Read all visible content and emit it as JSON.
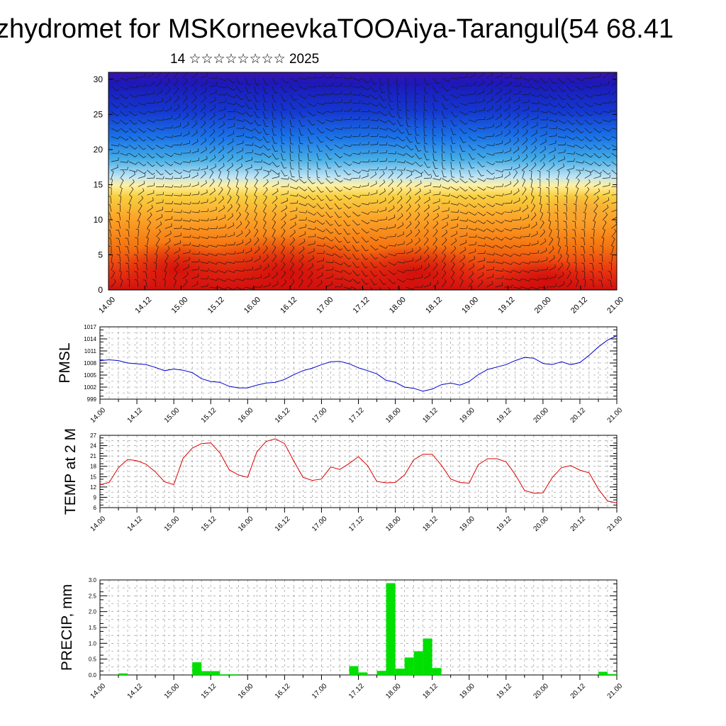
{
  "header": {
    "title": "zhydromet for MSKorneevkaTOOAiya-Tarangul(54 68.41",
    "subtitle": "14 ☆☆☆☆☆☆☆☆ 2025"
  },
  "colors": {
    "pmsl": "#0000cc",
    "temp": "#dd0000",
    "precip": "#00e000"
  },
  "time_ticks": [
    "14.00",
    "14.12",
    "15.00",
    "15.12",
    "16.00",
    "16.12",
    "17.00",
    "17.12",
    "18.00",
    "18.12",
    "19.00",
    "19.12",
    "20.00",
    "20.12",
    "21.00"
  ],
  "chart_data": [
    {
      "type": "heatmap",
      "name": "cross-section",
      "title": "",
      "xlabel": "",
      "ylabel": "",
      "ylim": [
        0,
        31
      ],
      "yticks": [
        "0",
        "5",
        "10",
        "15",
        "20",
        "25",
        "30"
      ],
      "x_tick_labels": [
        "14.00",
        "14.12",
        "15.00",
        "15.12",
        "16.00",
        "16.12",
        "17.00",
        "17.12",
        "18.00",
        "18.12",
        "19.00",
        "19.12",
        "20.00",
        "20.12",
        "21.00"
      ],
      "colorscale": [
        "#d01010",
        "#f05010",
        "#fb9a1e",
        "#f8d044",
        "#fff6b0",
        "#bfe4f4",
        "#46aee6",
        "#1458e0",
        "#1818b8",
        "#3a14b0"
      ],
      "wind_barbs": true
    },
    {
      "type": "line",
      "ylabel": "PMSL",
      "ylim": [
        999,
        1017
      ],
      "yticks": [
        "999",
        "1002",
        "1005",
        "1008",
        "1011",
        "1014",
        "1017"
      ],
      "x": [
        "14.00",
        "14.03",
        "14.06",
        "14.09",
        "14.12",
        "14.15",
        "14.18",
        "14.21",
        "15.00",
        "15.03",
        "15.06",
        "15.09",
        "15.12",
        "15.15",
        "15.18",
        "15.21",
        "16.00",
        "16.03",
        "16.06",
        "16.09",
        "16.12",
        "16.15",
        "16.18",
        "16.21",
        "17.00",
        "17.03",
        "17.06",
        "17.09",
        "17.12",
        "17.15",
        "17.18",
        "17.21",
        "18.00",
        "18.03",
        "18.06",
        "18.09",
        "18.12",
        "18.15",
        "18.18",
        "18.21",
        "19.00",
        "19.03",
        "19.06",
        "19.09",
        "19.12",
        "19.15",
        "19.18",
        "19.21",
        "20.00",
        "20.03",
        "20.06",
        "20.09",
        "20.12",
        "20.15",
        "20.18",
        "20.21",
        "21.00"
      ],
      "series": [
        {
          "values": [
            1008.6,
            1008.8,
            1008.6,
            1008.0,
            1007.8,
            1007.6,
            1006.9,
            1006.1,
            1006.5,
            1006.2,
            1005.6,
            1004.1,
            1003.4,
            1003.2,
            1002.2,
            1001.8,
            1001.8,
            1002.5,
            1003.0,
            1003.2,
            1003.9,
            1005.1,
            1006.1,
            1006.7,
            1007.6,
            1008.3,
            1008.4,
            1007.8,
            1006.8,
            1006.1,
            1005.3,
            1003.7,
            1003.2,
            1002.0,
            1001.7,
            1001.0,
            1001.5,
            1002.6,
            1003.0,
            1002.5,
            1003.4,
            1005.1,
            1006.4,
            1007.0,
            1007.6,
            1008.6,
            1009.4,
            1009.2,
            1007.9,
            1007.6,
            1008.3,
            1007.6,
            1008.1,
            1009.9,
            1012.0,
            1013.7,
            1014.8
          ]
        }
      ]
    },
    {
      "type": "line",
      "ylabel": "TEMP at 2 M",
      "ylim": [
        6,
        27
      ],
      "yticks": [
        "6",
        "9",
        "12",
        "15",
        "18",
        "21",
        "24",
        "27"
      ],
      "x": [
        "14.00",
        "14.03",
        "14.06",
        "14.09",
        "14.12",
        "14.15",
        "14.18",
        "14.21",
        "15.00",
        "15.03",
        "15.06",
        "15.09",
        "15.12",
        "15.15",
        "15.18",
        "15.21",
        "16.00",
        "16.03",
        "16.06",
        "16.09",
        "16.12",
        "16.15",
        "16.18",
        "16.21",
        "17.00",
        "17.03",
        "17.06",
        "17.09",
        "17.12",
        "17.15",
        "17.18",
        "17.21",
        "18.00",
        "18.03",
        "18.06",
        "18.09",
        "18.12",
        "18.15",
        "18.18",
        "18.21",
        "19.00",
        "19.03",
        "19.06",
        "19.09",
        "19.12",
        "19.15",
        "19.18",
        "19.21",
        "20.00",
        "20.03",
        "20.06",
        "20.09",
        "20.12",
        "20.15",
        "20.18",
        "20.21",
        "21.00"
      ],
      "series": [
        {
          "values": [
            12.6,
            13.3,
            17.6,
            20.0,
            19.6,
            18.6,
            16.4,
            13.5,
            12.7,
            20.3,
            23.3,
            24.6,
            24.8,
            21.9,
            17.0,
            15.5,
            14.8,
            22.2,
            25.2,
            26.0,
            24.6,
            19.5,
            14.8,
            13.9,
            14.3,
            17.8,
            17.1,
            18.8,
            20.8,
            18.2,
            13.6,
            13.2,
            13.3,
            15.5,
            19.9,
            21.5,
            21.5,
            18.3,
            14.3,
            13.3,
            13.1,
            18.5,
            20.2,
            20.2,
            19.3,
            15.6,
            11.0,
            10.2,
            10.3,
            14.7,
            17.6,
            18.2,
            16.9,
            16.1,
            11.4,
            7.9,
            7.4
          ]
        }
      ]
    },
    {
      "type": "bar",
      "ylabel": "PRECIP, mm",
      "ylim": [
        0,
        3
      ],
      "yticks": [
        "0.0",
        "0.5",
        "1.0",
        "1.5",
        "2.0",
        "2.5",
        "3.0"
      ],
      "categories": [
        "14.00",
        "14.03",
        "14.06",
        "14.09",
        "14.12",
        "14.15",
        "14.18",
        "14.21",
        "15.00",
        "15.03",
        "15.06",
        "15.09",
        "15.12",
        "15.15",
        "15.18",
        "15.21",
        "16.00",
        "16.03",
        "16.06",
        "16.09",
        "16.12",
        "16.15",
        "16.18",
        "16.21",
        "17.00",
        "17.03",
        "17.06",
        "17.09",
        "17.12",
        "17.15",
        "17.18",
        "17.21",
        "18.00",
        "18.03",
        "18.06",
        "18.09",
        "18.12",
        "18.15",
        "18.18",
        "18.21",
        "19.00",
        "19.03",
        "19.06",
        "19.09",
        "19.12",
        "19.15",
        "19.18",
        "19.21",
        "20.00",
        "20.03",
        "20.06",
        "20.09",
        "20.12",
        "20.15",
        "20.18",
        "20.21"
      ],
      "values": [
        0,
        0,
        0.05,
        0,
        0,
        0,
        0,
        0,
        0,
        0,
        0.4,
        0.12,
        0.12,
        0.02,
        0.02,
        0,
        0,
        0,
        0,
        0,
        0,
        0,
        0,
        0,
        0,
        0,
        0,
        0.28,
        0.08,
        0,
        0.13,
        2.9,
        0.2,
        0.55,
        0.75,
        1.15,
        0.22,
        0,
        0,
        0,
        0,
        0,
        0,
        0,
        0,
        0,
        0,
        0,
        0,
        0,
        0,
        0,
        0,
        0,
        0.1,
        0.03
      ]
    }
  ]
}
